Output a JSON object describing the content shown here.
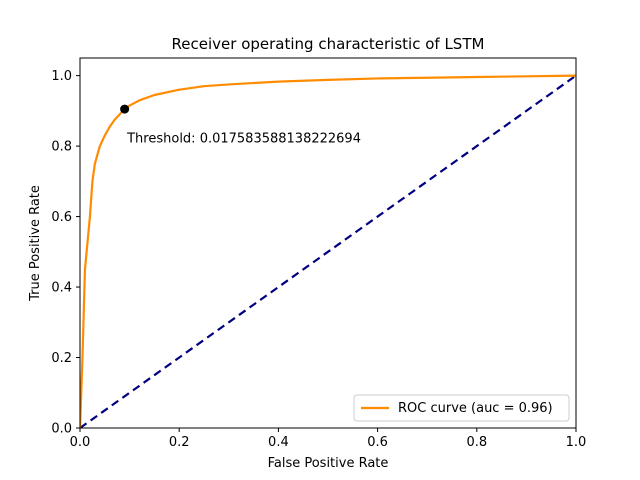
{
  "chart_data": {
    "type": "line",
    "title": "Receiver operating characteristic of LSTM",
    "xlabel": "False Positive Rate",
    "ylabel": "True Positive Rate",
    "xlim": [
      0.0,
      1.0
    ],
    "ylim": [
      0.0,
      1.05
    ],
    "x_ticks": [
      0.0,
      0.2,
      0.4,
      0.6,
      0.8,
      1.0
    ],
    "x_tick_labels": [
      "0.0",
      "0.2",
      "0.4",
      "0.6",
      "0.8",
      "1.0"
    ],
    "y_ticks": [
      0.0,
      0.2,
      0.4,
      0.6,
      0.8,
      1.0
    ],
    "y_tick_labels": [
      "0.0",
      "0.2",
      "0.4",
      "0.6",
      "0.8",
      "1.0"
    ],
    "grid": false,
    "legend_position": "lower-right",
    "series": [
      {
        "name": "ROC curve (auc = 0.96)",
        "color": "#ff8c00",
        "style": "solid",
        "x": [
          0.0,
          0.005,
          0.01,
          0.02,
          0.025,
          0.03,
          0.04,
          0.05,
          0.06,
          0.07,
          0.08,
          0.09,
          0.1,
          0.12,
          0.15,
          0.2,
          0.25,
          0.3,
          0.4,
          0.5,
          0.6,
          0.7,
          0.8,
          0.9,
          1.0
        ],
        "y": [
          0.0,
          0.2,
          0.45,
          0.6,
          0.7,
          0.75,
          0.8,
          0.83,
          0.855,
          0.875,
          0.89,
          0.905,
          0.915,
          0.93,
          0.945,
          0.96,
          0.97,
          0.975,
          0.983,
          0.988,
          0.992,
          0.994,
          0.996,
          0.998,
          1.0
        ]
      },
      {
        "name": "",
        "color": "#000080",
        "style": "dashed",
        "x": [
          0.0,
          1.0
        ],
        "y": [
          0.0,
          1.0
        ]
      }
    ],
    "point": {
      "x": 0.09,
      "y": 0.905,
      "color": "#000000"
    },
    "annotation": {
      "text": "Threshold: 0.017583588138222694",
      "x": 0.095,
      "y": 0.81
    }
  }
}
